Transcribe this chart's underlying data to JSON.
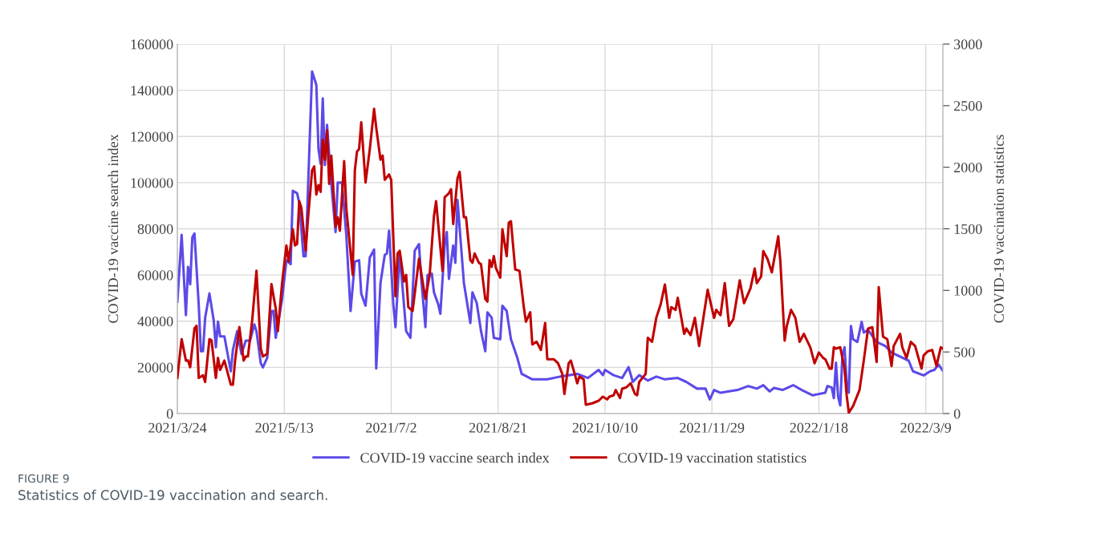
{
  "chart_data": {
    "type": "line",
    "annotations": [
      "FIGURE 9",
      "Statistics of COVID-19 vaccination and search."
    ],
    "ylabel": "COVID-19 vaccine search index",
    "y2label": "COVID-19 vaccination statistics",
    "xlim": [
      "2021-03-24",
      "2022-03-17"
    ],
    "xticks": [
      {
        "value": "2021-03-24",
        "label": "2021/3/24"
      },
      {
        "value": "2021-05-13",
        "label": "2021/5/13"
      },
      {
        "value": "2021-07-02",
        "label": "2021/7/2"
      },
      {
        "value": "2021-08-21",
        "label": "2021/8/21"
      },
      {
        "value": "2021-10-10",
        "label": "2021/10/10"
      },
      {
        "value": "2021-11-29",
        "label": "2021/11/29"
      },
      {
        "value": "2022-01-18",
        "label": "2022/1/18"
      },
      {
        "value": "2022-03-09",
        "label": "2022/3/9"
      }
    ],
    "ylim": [
      0,
      160000
    ],
    "yticks": [
      0,
      20000,
      40000,
      60000,
      80000,
      100000,
      120000,
      140000,
      160000
    ],
    "y2lim": [
      0,
      3000
    ],
    "y2ticks": [
      0,
      500,
      1000,
      1500,
      2000,
      2500,
      3000
    ],
    "grid": true,
    "legend": "bottom",
    "line_style": "solid",
    "marker": "none",
    "series": [
      {
        "name": "COVID-19 vaccine search index",
        "color": "#5b4ae8",
        "x": [
          "2021-03-24",
          "2021-03-26",
          "2021-03-28",
          "2021-03-29",
          "2021-03-30",
          "2021-03-31",
          "2021-04-01",
          "2021-04-03",
          "2021-04-04",
          "2021-04-05",
          "2021-04-06",
          "2021-04-08",
          "2021-04-10",
          "2021-04-11",
          "2021-04-12",
          "2021-04-13",
          "2021-04-15",
          "2021-04-18",
          "2021-04-19",
          "2021-04-21",
          "2021-04-23",
          "2021-04-25",
          "2021-04-27",
          "2021-04-29",
          "2021-04-30",
          "2021-05-02",
          "2021-05-03",
          "2021-05-05",
          "2021-05-07",
          "2021-05-08",
          "2021-05-09",
          "2021-05-12",
          "2021-05-14",
          "2021-05-16",
          "2021-05-17",
          "2021-05-19",
          "2021-05-20",
          "2021-05-22",
          "2021-05-23",
          "2021-05-26",
          "2021-05-28",
          "2021-05-29",
          "2021-05-30",
          "2021-05-31",
          "2021-06-01",
          "2021-06-02",
          "2021-06-04",
          "2021-06-06",
          "2021-06-07",
          "2021-06-09",
          "2021-06-11",
          "2021-06-13",
          "2021-06-15",
          "2021-06-17",
          "2021-06-18",
          "2021-06-20",
          "2021-06-22",
          "2021-06-24",
          "2021-06-25",
          "2021-06-27",
          "2021-06-29",
          "2021-06-30",
          "2021-07-01",
          "2021-07-03",
          "2021-07-04",
          "2021-07-06",
          "2021-07-09",
          "2021-07-11",
          "2021-07-13",
          "2021-07-15",
          "2021-07-16",
          "2021-07-18",
          "2021-07-19",
          "2021-07-21",
          "2021-07-22",
          "2021-07-24",
          "2021-07-25",
          "2021-07-27",
          "2021-07-28",
          "2021-07-29",
          "2021-07-31",
          "2021-08-01",
          "2021-08-02",
          "2021-08-05",
          "2021-08-08",
          "2021-08-09",
          "2021-08-11",
          "2021-08-13",
          "2021-08-15",
          "2021-08-16",
          "2021-08-18",
          "2021-08-19",
          "2021-08-22",
          "2021-08-23",
          "2021-08-25",
          "2021-08-27",
          "2021-08-30",
          "2021-09-01",
          "2021-09-06",
          "2021-09-13",
          "2021-09-19",
          "2021-09-27",
          "2021-10-02",
          "2021-10-07",
          "2021-10-09",
          "2021-10-10",
          "2021-10-14",
          "2021-10-18",
          "2021-10-21",
          "2021-10-23",
          "2021-10-26",
          "2021-10-30",
          "2021-11-03",
          "2021-11-07",
          "2021-11-13",
          "2021-11-17",
          "2021-11-22",
          "2021-11-26",
          "2021-11-28",
          "2021-11-30",
          "2021-12-03",
          "2021-12-11",
          "2021-12-16",
          "2021-12-20",
          "2021-12-23",
          "2021-12-26",
          "2021-12-28",
          "2022-01-01",
          "2022-01-06",
          "2022-01-10",
          "2022-01-15",
          "2022-01-21",
          "2022-01-22",
          "2022-01-24",
          "2022-01-25",
          "2022-01-26",
          "2022-01-27",
          "2022-01-28",
          "2022-01-29",
          "2022-01-30",
          "2022-01-31",
          "2022-02-01",
          "2022-02-02",
          "2022-02-03",
          "2022-02-05",
          "2022-02-07",
          "2022-02-08",
          "2022-02-10",
          "2022-02-14",
          "2022-02-18",
          "2022-02-21",
          "2022-03-01",
          "2022-03-03",
          "2022-03-08",
          "2022-03-11",
          "2022-03-13",
          "2022-03-15",
          "2022-03-17"
        ],
        "values": [
          48400,
          77400,
          42600,
          63500,
          56000,
          76300,
          78000,
          47000,
          27000,
          27000,
          41500,
          52000,
          40300,
          28700,
          39800,
          33400,
          33400,
          18300,
          27600,
          35700,
          25800,
          31600,
          31600,
          38600,
          35700,
          21800,
          20000,
          24100,
          44400,
          44400,
          32800,
          49600,
          66400,
          64700,
          96500,
          95400,
          91300,
          68100,
          68100,
          148100,
          142300,
          114500,
          108100,
          136500,
          107600,
          125000,
          99400,
          78600,
          100000,
          100000,
          77400,
          44400,
          65800,
          66400,
          51900,
          46700,
          67600,
          71000,
          19500,
          56600,
          68700,
          69300,
          79200,
          47300,
          37400,
          69300,
          35700,
          32800,
          70500,
          73400,
          58900,
          37400,
          60000,
          60600,
          52500,
          47300,
          43200,
          72800,
          78600,
          58300,
          72800,
          65300,
          92500,
          56600,
          39200,
          52500,
          47900,
          35700,
          27000,
          43800,
          41500,
          32800,
          32200,
          46700,
          44400,
          32200,
          24100,
          17200,
          14800,
          14800,
          16000,
          17200,
          15400,
          18900,
          16600,
          18900,
          16600,
          15400,
          20100,
          13700,
          16600,
          14300,
          16000,
          14800,
          15400,
          13700,
          10800,
          10800,
          6100,
          10200,
          9000,
          10200,
          11900,
          10800,
          12300,
          9600,
          11100,
          10200,
          12300,
          10200,
          7900,
          9000,
          11900,
          11300,
          6700,
          22000,
          7300,
          3500,
          25200,
          28700,
          13700,
          9000,
          37900,
          32200,
          31000,
          39700,
          35100,
          36200,
          31000,
          29300,
          26400,
          22900,
          18300,
          16500,
          18300,
          18900,
          21200,
          18500
        ]
      },
      {
        "name": "COVID-19 vaccination statistics",
        "color": "#c00000",
        "axis": "y2",
        "x": [
          "2021-03-24",
          "2021-03-26",
          "2021-03-28",
          "2021-03-29",
          "2021-03-30",
          "2021-04-01",
          "2021-04-02",
          "2021-04-03",
          "2021-04-05",
          "2021-04-06",
          "2021-04-08",
          "2021-04-09",
          "2021-04-11",
          "2021-04-12",
          "2021-04-13",
          "2021-04-15",
          "2021-04-16",
          "2021-04-18",
          "2021-04-19",
          "2021-04-20",
          "2021-04-22",
          "2021-04-24",
          "2021-04-25",
          "2021-04-26",
          "2021-04-28",
          "2021-04-30",
          "2021-05-02",
          "2021-05-03",
          "2021-05-05",
          "2021-05-07",
          "2021-05-09",
          "2021-05-10",
          "2021-05-12",
          "2021-05-14",
          "2021-05-15",
          "2021-05-17",
          "2021-05-18",
          "2021-05-19",
          "2021-05-20",
          "2021-05-21",
          "2021-05-23",
          "2021-05-24",
          "2021-05-26",
          "2021-05-27",
          "2021-05-28",
          "2021-05-29",
          "2021-05-30",
          "2021-05-31",
          "2021-06-01",
          "2021-06-02",
          "2021-06-03",
          "2021-06-04",
          "2021-06-06",
          "2021-06-07",
          "2021-06-08",
          "2021-06-10",
          "2021-06-11",
          "2021-06-14",
          "2021-06-15",
          "2021-06-16",
          "2021-06-17",
          "2021-06-18",
          "2021-06-20",
          "2021-06-22",
          "2021-06-24",
          "2021-06-25",
          "2021-06-27",
          "2021-06-28",
          "2021-06-29",
          "2021-07-01",
          "2021-07-02",
          "2021-07-04",
          "2021-07-05",
          "2021-07-06",
          "2021-07-08",
          "2021-07-09",
          "2021-07-10",
          "2021-07-12",
          "2021-07-15",
          "2021-07-18",
          "2021-07-20",
          "2021-07-22",
          "2021-07-23",
          "2021-07-26",
          "2021-07-27",
          "2021-07-29",
          "2021-07-30",
          "2021-07-31",
          "2021-08-02",
          "2021-08-03",
          "2021-08-05",
          "2021-08-06",
          "2021-08-08",
          "2021-08-09",
          "2021-08-10",
          "2021-08-12",
          "2021-08-13",
          "2021-08-15",
          "2021-08-16",
          "2021-08-17",
          "2021-08-18",
          "2021-08-19",
          "2021-08-20",
          "2021-08-22",
          "2021-08-23",
          "2021-08-25",
          "2021-08-26",
          "2021-08-27",
          "2021-08-29",
          "2021-08-31",
          "2021-09-02",
          "2021-09-03",
          "2021-09-05",
          "2021-09-06",
          "2021-09-08",
          "2021-09-10",
          "2021-09-12",
          "2021-09-13",
          "2021-09-16",
          "2021-09-18",
          "2021-09-20",
          "2021-09-21",
          "2021-09-23",
          "2021-09-24",
          "2021-09-26",
          "2021-09-27",
          "2021-09-28",
          "2021-09-30",
          "2021-10-01",
          "2021-10-04",
          "2021-10-07",
          "2021-10-09",
          "2021-10-11",
          "2021-10-12",
          "2021-10-14",
          "2021-10-15",
          "2021-10-17",
          "2021-10-18",
          "2021-10-20",
          "2021-10-22",
          "2021-10-24",
          "2021-10-25",
          "2021-10-26",
          "2021-10-28",
          "2021-10-29",
          "2021-10-30",
          "2021-11-01",
          "2021-11-03",
          "2021-11-05",
          "2021-11-07",
          "2021-11-09",
          "2021-11-10",
          "2021-11-12",
          "2021-11-13",
          "2021-11-16",
          "2021-11-17",
          "2021-11-19",
          "2021-11-21",
          "2021-11-23",
          "2021-11-25",
          "2021-11-27",
          "2021-11-30",
          "2021-12-01",
          "2021-12-03",
          "2021-12-05",
          "2021-12-07",
          "2021-12-09",
          "2021-12-12",
          "2021-12-14",
          "2021-12-17",
          "2021-12-19",
          "2021-12-20",
          "2021-12-22",
          "2021-12-23",
          "2021-12-25",
          "2021-12-27",
          "2021-12-30",
          "2021-12-31",
          "2022-01-02",
          "2022-01-03",
          "2022-01-05",
          "2022-01-07",
          "2022-01-09",
          "2022-01-11",
          "2022-01-14",
          "2022-01-16",
          "2022-01-18",
          "2022-01-20",
          "2022-01-21",
          "2022-01-23",
          "2022-01-24",
          "2022-01-25",
          "2022-01-26",
          "2022-01-28",
          "2022-01-30",
          "2022-01-31",
          "2022-02-01",
          "2022-02-03",
          "2022-02-06",
          "2022-02-08",
          "2022-02-10",
          "2022-02-12",
          "2022-02-14",
          "2022-02-15",
          "2022-02-17",
          "2022-02-19",
          "2022-02-21",
          "2022-02-22",
          "2022-02-25",
          "2022-02-26",
          "2022-02-28",
          "2022-03-02",
          "2022-03-04",
          "2022-03-07",
          "2022-03-08",
          "2022-03-10",
          "2022-03-12",
          "2022-03-14",
          "2022-03-16",
          "2022-03-17"
        ],
        "values": [
          289,
          604,
          430,
          430,
          376,
          691,
          713,
          289,
          311,
          256,
          604,
          593,
          289,
          452,
          354,
          430,
          365,
          235,
          235,
          430,
          702,
          430,
          463,
          463,
          757,
          1159,
          528,
          463,
          485,
          1050,
          854,
          670,
          1061,
          1365,
          1235,
          1496,
          1365,
          1376,
          1724,
          1670,
          1322,
          1561,
          1974,
          2007,
          1778,
          1855,
          1800,
          2224,
          2061,
          2300,
          1865,
          2094,
          1517,
          1594,
          1485,
          2050,
          1670,
          1126,
          1974,
          2126,
          2148,
          2365,
          1876,
          2148,
          2474,
          2322,
          2061,
          2094,
          1898,
          1941,
          1898,
          952,
          1300,
          1322,
          1072,
          1126,
          865,
          833,
          1257,
          930,
          1126,
          1604,
          1724,
          1159,
          1757,
          1789,
          1822,
          1539,
          1909,
          1963,
          1594,
          1594,
          1246,
          1224,
          1300,
          1224,
          1213,
          930,
          909,
          1246,
          1191,
          1278,
          1180,
          1104,
          1496,
          1278,
          1550,
          1561,
          1170,
          1159,
          865,
          746,
          822,
          561,
          583,
          517,
          735,
          441,
          441,
          409,
          322,
          159,
          409,
          430,
          311,
          246,
          300,
          278,
          72,
          83,
          104,
          137,
          115,
          137,
          148,
          191,
          126,
          202,
          213,
          246,
          159,
          148,
          257,
          300,
          322,
          615,
          583,
          780,
          885,
          1048,
          777,
          864,
          842,
          940,
          647,
          690,
          636,
          777,
          549,
          777,
          1005,
          777,
          842,
          799,
          1059,
          712,
          766,
          1081,
          896,
          1016,
          1178,
          1059,
          1113,
          1319,
          1254,
          1146,
          1439,
          1233,
          592,
          712,
          842,
          777,
          582,
          647,
          538,
          408,
          495,
          451,
          441,
          365,
          365,
          538,
          527,
          538,
          365,
          148,
          7,
          61,
          191,
          430,
          690,
          701,
          419,
          1026,
          625,
          603,
          386,
          549,
          647,
          538,
          451,
          582,
          549,
          365,
          473,
          506,
          516,
          386,
          538,
          527
        ]
      }
    ]
  }
}
